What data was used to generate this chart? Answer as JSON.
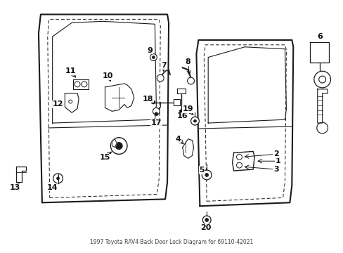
{
  "title": "1997 Toyota RAV4 Back Door Lock Diagram for 69110-42021",
  "bg_color": "#ffffff",
  "line_color": "#1a1a1a",
  "text_color": "#111111"
}
